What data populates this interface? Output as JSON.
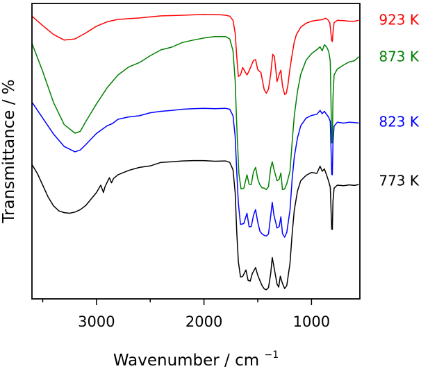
{
  "chart_data": {
    "type": "line",
    "xlabel": "Wavenumber / cm",
    "xlabel_sup": "−1",
    "ylabel": "Transmittance / %",
    "x_axis_reversed": true,
    "xlim": [
      3600,
      550
    ],
    "x_ticks": [
      3000,
      2000,
      1000
    ],
    "x_tick_labels": [
      "3000",
      "2000",
      "1000"
    ],
    "x_minor_step": 500,
    "y_ticks_shown": false,
    "ylim": [
      0,
      100
    ],
    "grid": false,
    "legend": "inline-right",
    "series": [
      {
        "name": "923 K",
        "color": "#ff0000",
        "points": [
          [
            3600,
            95.7
          ],
          [
            3500,
            92.5
          ],
          [
            3400,
            89.5
          ],
          [
            3300,
            87.6
          ],
          [
            3200,
            88.0
          ],
          [
            3100,
            90.0
          ],
          [
            3000,
            92.3
          ],
          [
            2900,
            93.8
          ],
          [
            2800,
            94.6
          ],
          [
            2600,
            95.1
          ],
          [
            2400,
            95.8
          ],
          [
            2200,
            96.0
          ],
          [
            2000,
            96.3
          ],
          [
            1850,
            96.2
          ],
          [
            1800,
            96.0
          ],
          [
            1760,
            95.7
          ],
          [
            1730,
            94.3
          ],
          [
            1710,
            90.0
          ],
          [
            1695,
            82.0
          ],
          [
            1680,
            75.3
          ],
          [
            1660,
            75.8
          ],
          [
            1640,
            78.3
          ],
          [
            1600,
            75.8
          ],
          [
            1580,
            77.2
          ],
          [
            1540,
            80.7
          ],
          [
            1520,
            81.0
          ],
          [
            1500,
            77.6
          ],
          [
            1470,
            76.6
          ],
          [
            1440,
            70.8
          ],
          [
            1420,
            69.6
          ],
          [
            1400,
            71.0
          ],
          [
            1380,
            76.0
          ],
          [
            1360,
            82.8
          ],
          [
            1345,
            82.0
          ],
          [
            1320,
            73.6
          ],
          [
            1300,
            76.0
          ],
          [
            1285,
            77.4
          ],
          [
            1270,
            72.1
          ],
          [
            1250,
            69.2
          ],
          [
            1235,
            69.5
          ],
          [
            1220,
            72.2
          ],
          [
            1200,
            78.0
          ],
          [
            1180,
            82.7
          ],
          [
            1160,
            87.0
          ],
          [
            1140,
            89.5
          ],
          [
            1100,
            92.0
          ],
          [
            1050,
            93.3
          ],
          [
            1000,
            94.0
          ],
          [
            950,
            94.3
          ],
          [
            900,
            94.5
          ],
          [
            870,
            95.0
          ],
          [
            850,
            94.6
          ],
          [
            830,
            93.5
          ],
          [
            820,
            90.2
          ],
          [
            812,
            87.4
          ],
          [
            806,
            87.1
          ],
          [
            800,
            90.0
          ],
          [
            790,
            93.5
          ],
          [
            760,
            94.3
          ],
          [
            700,
            94.2
          ],
          [
            650,
            94.0
          ],
          [
            600,
            94.0
          ],
          [
            560,
            94.3
          ]
        ]
      },
      {
        "name": "873 K",
        "color": "#008000",
        "points": [
          [
            3600,
            86.5
          ],
          [
            3500,
            77.0
          ],
          [
            3400,
            66.5
          ],
          [
            3300,
            59.0
          ],
          [
            3200,
            56.1
          ],
          [
            3150,
            56.7
          ],
          [
            3100,
            60.0
          ],
          [
            3000,
            66.0
          ],
          [
            2900,
            71.5
          ],
          [
            2800,
            75.8
          ],
          [
            2700,
            78.5
          ],
          [
            2600,
            80.0
          ],
          [
            2500,
            82.3
          ],
          [
            2400,
            84.3
          ],
          [
            2300,
            85.2
          ],
          [
            2200,
            86.8
          ],
          [
            2100,
            87.6
          ],
          [
            2000,
            88.3
          ],
          [
            1900,
            88.8
          ],
          [
            1800,
            88.8
          ],
          [
            1760,
            88.0
          ],
          [
            1730,
            84.0
          ],
          [
            1710,
            73.8
          ],
          [
            1695,
            58.7
          ],
          [
            1675,
            42.3
          ],
          [
            1655,
            37.2
          ],
          [
            1630,
            37.4
          ],
          [
            1600,
            42.0
          ],
          [
            1580,
            38.8
          ],
          [
            1560,
            38.7
          ],
          [
            1540,
            43.0
          ],
          [
            1520,
            44.5
          ],
          [
            1500,
            40.6
          ],
          [
            1480,
            38.6
          ],
          [
            1460,
            37.6
          ],
          [
            1440,
            37.5
          ],
          [
            1420,
            37.0
          ],
          [
            1400,
            38.0
          ],
          [
            1380,
            44.2
          ],
          [
            1365,
            46.4
          ],
          [
            1350,
            44.0
          ],
          [
            1320,
            40.0
          ],
          [
            1300,
            40.5
          ],
          [
            1285,
            42.6
          ],
          [
            1270,
            37.0
          ],
          [
            1250,
            37.2
          ],
          [
            1230,
            39.0
          ],
          [
            1200,
            43.2
          ],
          [
            1180,
            53.0
          ],
          [
            1160,
            62.0
          ],
          [
            1130,
            70.2
          ],
          [
            1100,
            76.0
          ],
          [
            1050,
            80.8
          ],
          [
            1000,
            83.0
          ],
          [
            950,
            84.4
          ],
          [
            920,
            85.3
          ],
          [
            900,
            84.0
          ],
          [
            880,
            86.0
          ],
          [
            860,
            85.3
          ],
          [
            840,
            83.8
          ],
          [
            825,
            80.5
          ],
          [
            812,
            52.9
          ],
          [
            806,
            52.8
          ],
          [
            800,
            68.0
          ],
          [
            790,
            75.8
          ],
          [
            760,
            77.8
          ],
          [
            700,
            79.2
          ],
          [
            650,
            80.2
          ],
          [
            600,
            80.6
          ],
          [
            560,
            82.0
          ]
        ]
      },
      {
        "name": "823 K",
        "color": "#0000ff",
        "points": [
          [
            3600,
            66.6
          ],
          [
            3500,
            61.2
          ],
          [
            3400,
            55.8
          ],
          [
            3300,
            51.6
          ],
          [
            3200,
            49.8
          ],
          [
            3150,
            50.4
          ],
          [
            3100,
            52.2
          ],
          [
            3000,
            56.0
          ],
          [
            2900,
            58.6
          ],
          [
            2850,
            59.4
          ],
          [
            2800,
            60.8
          ],
          [
            2700,
            61.6
          ],
          [
            2600,
            62.0
          ],
          [
            2500,
            63.0
          ],
          [
            2400,
            63.5
          ],
          [
            2300,
            63.8
          ],
          [
            2200,
            64.2
          ],
          [
            2100,
            64.4
          ],
          [
            2000,
            64.5
          ],
          [
            1900,
            64.4
          ],
          [
            1800,
            64.5
          ],
          [
            1760,
            64.2
          ],
          [
            1730,
            62.0
          ],
          [
            1710,
            55.0
          ],
          [
            1695,
            43.0
          ],
          [
            1680,
            32.4
          ],
          [
            1660,
            25.2
          ],
          [
            1630,
            25.5
          ],
          [
            1600,
            29.0
          ],
          [
            1580,
            24.4
          ],
          [
            1560,
            24.5
          ],
          [
            1540,
            28.2
          ],
          [
            1520,
            30.2
          ],
          [
            1500,
            26.0
          ],
          [
            1480,
            22.9
          ],
          [
            1460,
            22.0
          ],
          [
            1440,
            21.5
          ],
          [
            1420,
            21.3
          ],
          [
            1400,
            22.0
          ],
          [
            1380,
            28.0
          ],
          [
            1365,
            32.7
          ],
          [
            1350,
            28.5
          ],
          [
            1320,
            24.0
          ],
          [
            1300,
            24.5
          ],
          [
            1285,
            27.8
          ],
          [
            1270,
            22.1
          ],
          [
            1250,
            20.9
          ],
          [
            1230,
            22.5
          ],
          [
            1200,
            30.0
          ],
          [
            1180,
            40.5
          ],
          [
            1160,
            48.0
          ],
          [
            1130,
            54.5
          ],
          [
            1100,
            58.6
          ],
          [
            1050,
            61.2
          ],
          [
            1000,
            62.1
          ],
          [
            950,
            62.5
          ],
          [
            920,
            63.8
          ],
          [
            900,
            62.7
          ],
          [
            880,
            63.5
          ],
          [
            860,
            62.5
          ],
          [
            840,
            61.5
          ],
          [
            825,
            60.0
          ],
          [
            812,
            42.2
          ],
          [
            806,
            42.0
          ],
          [
            800,
            53.0
          ],
          [
            790,
            58.5
          ],
          [
            760,
            59.8
          ],
          [
            700,
            59.5
          ],
          [
            650,
            59.8
          ],
          [
            600,
            59.7
          ],
          [
            560,
            59.5
          ]
        ]
      },
      {
        "name": "773 K",
        "color": "#000000",
        "points": [
          [
            3600,
            45.5
          ],
          [
            3550,
            42.5
          ],
          [
            3500,
            38.5
          ],
          [
            3450,
            34.5
          ],
          [
            3400,
            31.5
          ],
          [
            3350,
            29.8
          ],
          [
            3300,
            29.2
          ],
          [
            3250,
            29.0
          ],
          [
            3200,
            29.4
          ],
          [
            3150,
            30.2
          ],
          [
            3100,
            31.6
          ],
          [
            3000,
            36.0
          ],
          [
            2960,
            38.5
          ],
          [
            2935,
            36.0
          ],
          [
            2920,
            38.0
          ],
          [
            2880,
            41.0
          ],
          [
            2860,
            39.3
          ],
          [
            2840,
            40.8
          ],
          [
            2800,
            42.0
          ],
          [
            2700,
            43.5
          ],
          [
            2600,
            44.5
          ],
          [
            2500,
            45.0
          ],
          [
            2400,
            46.2
          ],
          [
            2300,
            46.4
          ],
          [
            2200,
            46.7
          ],
          [
            2100,
            46.8
          ],
          [
            2000,
            46.8
          ],
          [
            1900,
            46.6
          ],
          [
            1800,
            46.7
          ],
          [
            1760,
            46.2
          ],
          [
            1730,
            43.7
          ],
          [
            1710,
            36.0
          ],
          [
            1695,
            22.5
          ],
          [
            1680,
            12.6
          ],
          [
            1660,
            7.4
          ],
          [
            1640,
            7.6
          ],
          [
            1610,
            9.8
          ],
          [
            1590,
            6.3
          ],
          [
            1570,
            6.0
          ],
          [
            1550,
            8.6
          ],
          [
            1520,
            10.6
          ],
          [
            1500,
            8.0
          ],
          [
            1480,
            6.2
          ],
          [
            1460,
            4.5
          ],
          [
            1440,
            3.4
          ],
          [
            1420,
            3.1
          ],
          [
            1400,
            3.8
          ],
          [
            1380,
            8.5
          ],
          [
            1365,
            14.0
          ],
          [
            1350,
            11.0
          ],
          [
            1320,
            5.0
          ],
          [
            1305,
            4.0
          ],
          [
            1290,
            7.7
          ],
          [
            1270,
            5.2
          ],
          [
            1250,
            3.5
          ],
          [
            1230,
            4.5
          ],
          [
            1200,
            12.0
          ],
          [
            1180,
            22.0
          ],
          [
            1160,
            30.0
          ],
          [
            1130,
            36.5
          ],
          [
            1100,
            40.0
          ],
          [
            1050,
            41.8
          ],
          [
            1000,
            42.8
          ],
          [
            950,
            42.5
          ],
          [
            920,
            44.9
          ],
          [
            900,
            43.2
          ],
          [
            880,
            44.0
          ],
          [
            860,
            42.0
          ],
          [
            840,
            39.8
          ],
          [
            825,
            37.8
          ],
          [
            812,
            23.6
          ],
          [
            806,
            23.5
          ],
          [
            800,
            33.0
          ],
          [
            790,
            37.5
          ],
          [
            760,
            38.5
          ],
          [
            700,
            38.3
          ],
          [
            650,
            38.6
          ],
          [
            600,
            38.4
          ],
          [
            560,
            38.7
          ]
        ]
      }
    ],
    "label_anchor_y": [
      94.5,
      82.0,
      60.0,
      40.0
    ]
  }
}
